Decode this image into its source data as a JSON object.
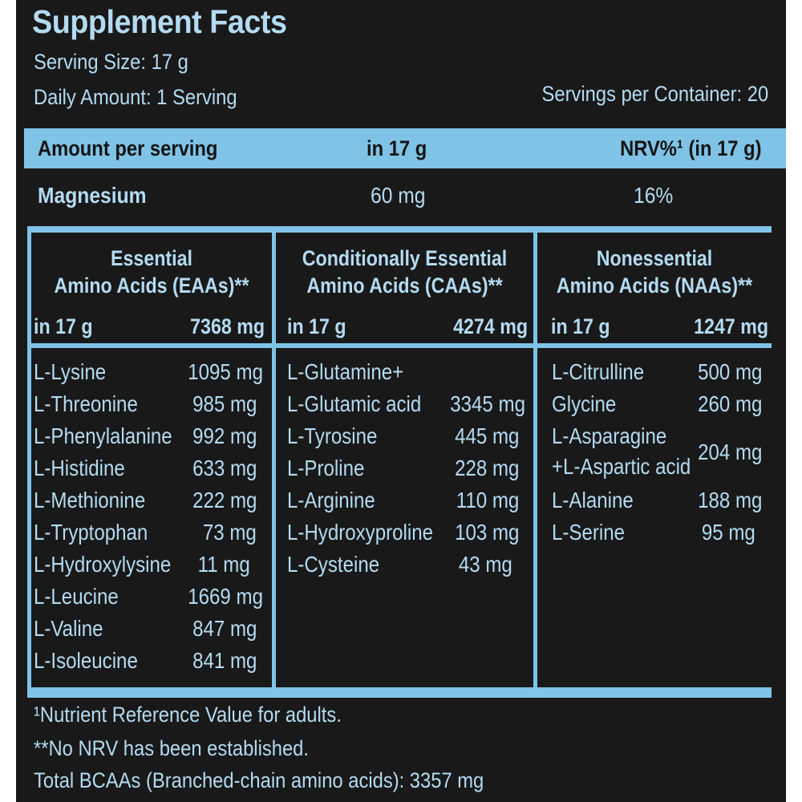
{
  "title": "Supplement Facts",
  "serving_size": "Serving Size: 17 g",
  "daily_amount": "Daily Amount: 1 Serving",
  "servings_per_container": "Servings per Container: 20",
  "header": {
    "amount_label": "Amount per serving",
    "in_label": "in 17 g",
    "nrv_label": "NRV%¹ (in 17 g)"
  },
  "mineral": {
    "name": "Magnesium",
    "amount": "60 mg",
    "nrv": "16%"
  },
  "groups": [
    {
      "title_line1": "Essential",
      "title_line2": "Amino Acids (EAAs)**",
      "total_label": "in 17 g",
      "total_value": "7368 mg",
      "items": [
        {
          "name": "L-Lysine",
          "value": "1095 mg"
        },
        {
          "name": "L-Threonine",
          "value": "985 mg"
        },
        {
          "name": "L-Phenylalanine",
          "value": "992 mg"
        },
        {
          "name": "L-Histidine",
          "value": "633 mg"
        },
        {
          "name": "L-Methionine",
          "value": "222 mg"
        },
        {
          "name": "L-Tryptophan",
          "value": "73 mg"
        },
        {
          "name": "L-Hydroxylysine",
          "value": "11 mg"
        },
        {
          "name": "L-Leucine",
          "value": "1669 mg"
        },
        {
          "name": "L-Valine",
          "value": "847 mg"
        },
        {
          "name": "L-Isoleucine",
          "value": "841 mg"
        }
      ]
    },
    {
      "title_line1": "Conditionally Essential",
      "title_line2": "Amino Acids (CAAs)**",
      "total_label": "in 17 g",
      "total_value": "4274 mg",
      "items": [
        {
          "name": "L-Glutamine+",
          "value": ""
        },
        {
          "name": "L-Glutamic acid",
          "value": "3345 mg"
        },
        {
          "name": "L-Tyrosine",
          "value": "445 mg"
        },
        {
          "name": "L-Proline",
          "value": "228 mg"
        },
        {
          "name": "L-Arginine",
          "value": "110 mg"
        },
        {
          "name": "L-Hydroxyproline",
          "value": "103 mg"
        },
        {
          "name": "L-Cysteine",
          "value": "43 mg"
        }
      ]
    },
    {
      "title_line1": "Nonessential",
      "title_line2": "Amino Acids (NAAs)**",
      "total_label": "in 17 g",
      "total_value": "1247 mg",
      "items": [
        {
          "name": "L-Citrulline",
          "value": "500 mg"
        },
        {
          "name": "Glycine",
          "value": "260 mg"
        },
        {
          "name": "L-Asparagine",
          "name2": "+L-Aspartic acid",
          "value": "204 mg"
        },
        {
          "name": "L-Alanine",
          "value": "188 mg"
        },
        {
          "name": "L-Serine",
          "value": "95 mg"
        }
      ]
    }
  ],
  "footnotes": [
    "¹Nutrient Reference Value for adults.",
    "**No NRV has been established.",
    "Total BCAAs (Branched-chain amino acids): 3357 mg"
  ],
  "colors": {
    "background": "#191919",
    "accent": "#7fc3e6",
    "text": "#b3dbf2"
  }
}
